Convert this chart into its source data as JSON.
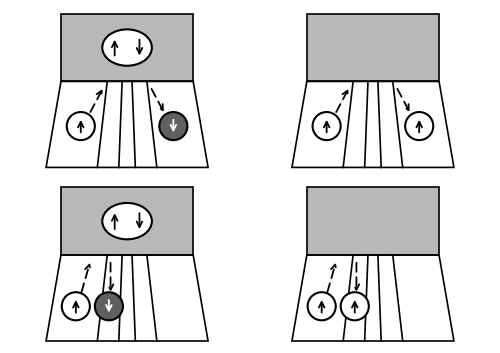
{
  "fig_width": 5.0,
  "fig_height": 3.53,
  "dpi": 100,
  "bg_color": "#ffffff",
  "gray_sc": "#b8b8b8",
  "dark_circle": "#606060",
  "black": "#000000",
  "white": "#ffffff",
  "lw": 1.2,
  "panels": [
    {
      "has_cooper": true,
      "right_circle_dark": true,
      "right_circle_up": false,
      "circles_split": true,
      "dashed_left_up": true,
      "dashed_right_up": false
    },
    {
      "has_cooper": false,
      "right_circle_dark": false,
      "right_circle_up": true,
      "circles_split": true,
      "dashed_left_up": true,
      "dashed_right_up": false
    },
    {
      "has_cooper": true,
      "right_circle_dark": true,
      "right_circle_up": false,
      "circles_split": false,
      "dashed_left_up": true,
      "dashed_right_up": false
    },
    {
      "has_cooper": false,
      "right_circle_dark": false,
      "right_circle_up": true,
      "circles_split": false,
      "dashed_left_up": true,
      "dashed_right_up": false
    }
  ]
}
